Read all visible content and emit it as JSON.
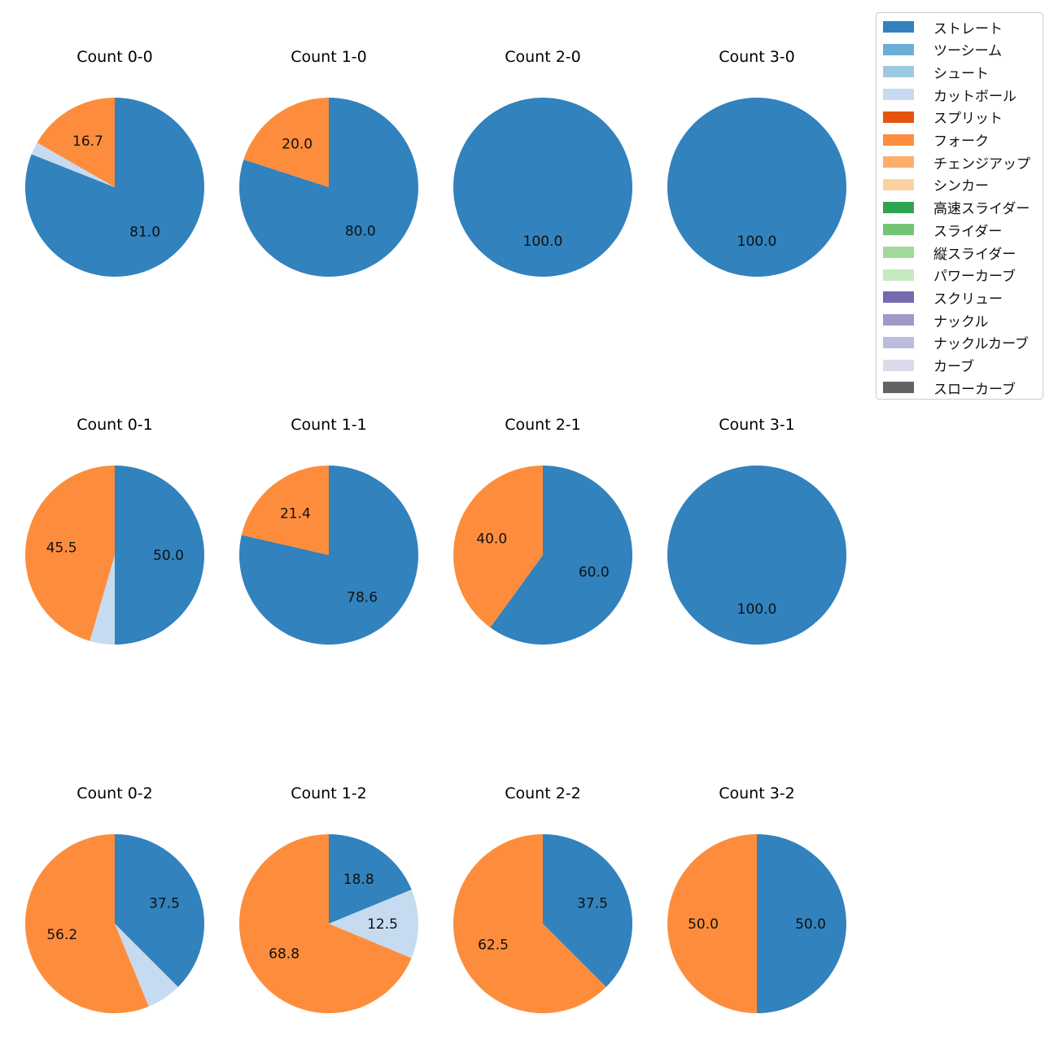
{
  "chart_data": {
    "type": "pie",
    "legend": {
      "placement": "top-right",
      "entries": [
        {
          "name": "ストレート",
          "color": "#3182bd"
        },
        {
          "name": "ツーシーム",
          "color": "#6baed6"
        },
        {
          "name": "シュート",
          "color": "#9ecae1"
        },
        {
          "name": "カットボール",
          "color": "#c6dbef"
        },
        {
          "name": "スプリット",
          "color": "#e6550d"
        },
        {
          "name": "フォーク",
          "color": "#fd8d3c"
        },
        {
          "name": "チェンジアップ",
          "color": "#fdae6b"
        },
        {
          "name": "シンカー",
          "color": "#fdd0a2"
        },
        {
          "name": "高速スライダー",
          "color": "#31a354"
        },
        {
          "name": "スライダー",
          "color": "#74c476"
        },
        {
          "name": "縦スライダー",
          "color": "#a1d99b"
        },
        {
          "name": "パワーカーブ",
          "color": "#c7e9c0"
        },
        {
          "name": "スクリュー",
          "color": "#756bb1"
        },
        {
          "name": "ナックル",
          "color": "#9e9ac8"
        },
        {
          "name": "ナックルカーブ",
          "color": "#bcbddc"
        },
        {
          "name": "カーブ",
          "color": "#dadaeb"
        },
        {
          "name": "スローカーブ",
          "color": "#636363"
        }
      ]
    },
    "charts": [
      {
        "title": "Count 0-0",
        "slices": [
          {
            "pitch": "ストレート",
            "value": 81.0,
            "label": "81.0"
          },
          {
            "pitch": "カットボール",
            "value": 2.3,
            "label": ""
          },
          {
            "pitch": "フォーク",
            "value": 16.7,
            "label": "16.7"
          }
        ]
      },
      {
        "title": "Count 1-0",
        "slices": [
          {
            "pitch": "ストレート",
            "value": 80.0,
            "label": "80.0"
          },
          {
            "pitch": "フォーク",
            "value": 20.0,
            "label": "20.0"
          }
        ]
      },
      {
        "title": "Count 2-0",
        "slices": [
          {
            "pitch": "ストレート",
            "value": 100.0,
            "label": "100.0"
          }
        ]
      },
      {
        "title": "Count 3-0",
        "slices": [
          {
            "pitch": "ストレート",
            "value": 100.0,
            "label": "100.0"
          }
        ]
      },
      {
        "title": "Count 0-1",
        "slices": [
          {
            "pitch": "ストレート",
            "value": 50.0,
            "label": "50.0"
          },
          {
            "pitch": "カットボール",
            "value": 4.5,
            "label": ""
          },
          {
            "pitch": "フォーク",
            "value": 45.5,
            "label": "45.5"
          }
        ]
      },
      {
        "title": "Count 1-1",
        "slices": [
          {
            "pitch": "ストレート",
            "value": 78.6,
            "label": "78.6"
          },
          {
            "pitch": "フォーク",
            "value": 21.4,
            "label": "21.4"
          }
        ]
      },
      {
        "title": "Count 2-1",
        "slices": [
          {
            "pitch": "ストレート",
            "value": 60.0,
            "label": "60.0"
          },
          {
            "pitch": "フォーク",
            "value": 40.0,
            "label": "40.0"
          }
        ]
      },
      {
        "title": "Count 3-1",
        "slices": [
          {
            "pitch": "ストレート",
            "value": 100.0,
            "label": "100.0"
          }
        ]
      },
      {
        "title": "Count 0-2",
        "slices": [
          {
            "pitch": "ストレート",
            "value": 37.5,
            "label": "37.5"
          },
          {
            "pitch": "カットボール",
            "value": 6.3,
            "label": ""
          },
          {
            "pitch": "フォーク",
            "value": 56.2,
            "label": "56.2"
          }
        ]
      },
      {
        "title": "Count 1-2",
        "slices": [
          {
            "pitch": "ストレート",
            "value": 18.8,
            "label": "18.8"
          },
          {
            "pitch": "カットボール",
            "value": 12.5,
            "label": "12.5"
          },
          {
            "pitch": "フォーク",
            "value": 68.8,
            "label": "68.8"
          }
        ]
      },
      {
        "title": "Count 2-2",
        "slices": [
          {
            "pitch": "ストレート",
            "value": 37.5,
            "label": "37.5"
          },
          {
            "pitch": "フォーク",
            "value": 62.5,
            "label": "62.5"
          }
        ]
      },
      {
        "title": "Count 3-2",
        "slices": [
          {
            "pitch": "ストレート",
            "value": 50.0,
            "label": "50.0"
          },
          {
            "pitch": "フォーク",
            "value": 50.0,
            "label": "50.0"
          }
        ]
      }
    ]
  }
}
